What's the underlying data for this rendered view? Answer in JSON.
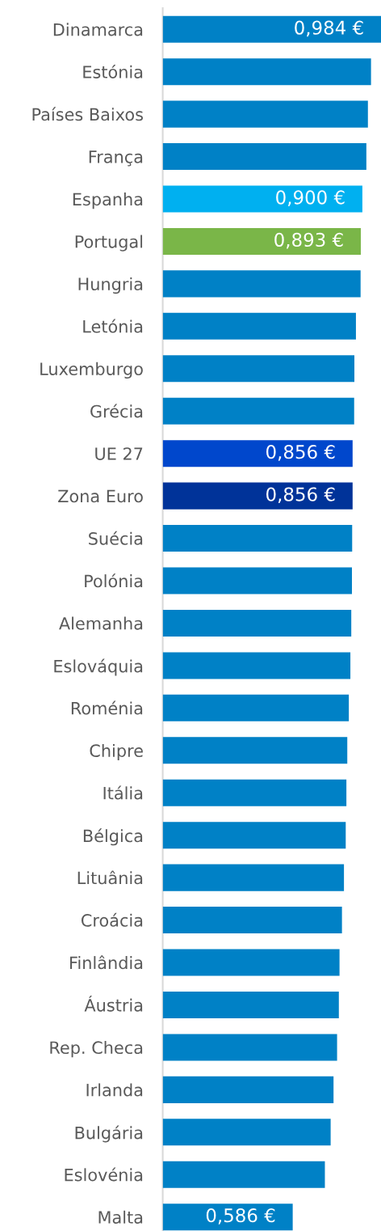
{
  "chart_data": {
    "type": "bar",
    "orientation": "horizontal",
    "categories": [
      "Dinamarca",
      "Estónia",
      "Países Baixos",
      "França",
      "Espanha",
      "Portugal",
      "Hungria",
      "Letónia",
      "Luxemburgo",
      "Grécia",
      "UE 27",
      "Zona Euro",
      "Suécia",
      "Polónia",
      "Alemanha",
      "Eslováquia",
      "Roménia",
      "Chipre",
      "Itália",
      "Bélgica",
      "Lituânia",
      "Croácia",
      "Finlândia",
      "Áustria",
      "Rep. Checa",
      "Irlanda",
      "Bulgária",
      "Eslovénia",
      "Malta"
    ],
    "values": [
      0.984,
      0.939,
      0.925,
      0.918,
      0.9,
      0.893,
      0.892,
      0.871,
      0.864,
      0.863,
      0.856,
      0.856,
      0.854,
      0.853,
      0.85,
      0.846,
      0.839,
      0.832,
      0.828,
      0.825,
      0.817,
      0.808,
      0.797,
      0.794,
      0.786,
      0.77,
      0.757,
      0.731,
      0.586
    ],
    "colors": [
      "#0081c6",
      "#0081c6",
      "#0081c6",
      "#0081c6",
      "#00b0f0",
      "#7ab648",
      "#0081c6",
      "#0081c6",
      "#0081c6",
      "#0081c6",
      "#0047cc",
      "#003399",
      "#0081c6",
      "#0081c6",
      "#0081c6",
      "#0081c6",
      "#0081c6",
      "#0081c6",
      "#0081c6",
      "#0081c6",
      "#0081c6",
      "#0081c6",
      "#0081c6",
      "#0081c6",
      "#0081c6",
      "#0081c6",
      "#0081c6",
      "#0081c6",
      "#0081c6"
    ],
    "value_labels": [
      "0,984 €",
      null,
      null,
      null,
      "0,900 €",
      "0,893 €",
      null,
      null,
      null,
      null,
      "0,856 €",
      "0,856 €",
      null,
      null,
      null,
      null,
      null,
      null,
      null,
      null,
      null,
      null,
      null,
      null,
      null,
      null,
      null,
      null,
      "0,586 €"
    ],
    "xlim": [
      0,
      0.984
    ],
    "tick_labels": "y"
  }
}
